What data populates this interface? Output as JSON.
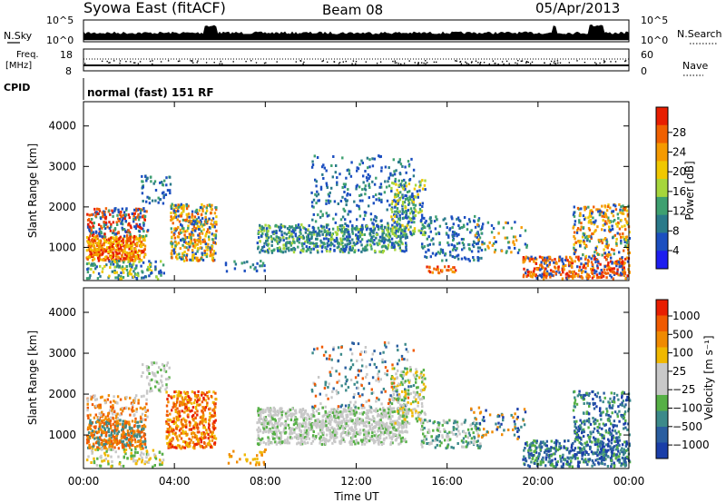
{
  "header": {
    "station": "Syowa East (fitACF)",
    "beam": "Beam 08",
    "date": "05/Apr/2013"
  },
  "chart_data": [
    {
      "type": "line",
      "panel": "noise",
      "left_label": "N.Sky",
      "right_label": "N.Search",
      "left_ticks": [
        "10^5",
        "10^0"
      ],
      "right_ticks": [
        "10^5",
        "10^0"
      ],
      "x_range_hours": [
        0,
        24
      ]
    },
    {
      "type": "scatter",
      "panel": "frequency",
      "left_label_lines": [
        "Freq.",
        "[MHz]"
      ],
      "left_ticks": [
        "18",
        "8"
      ],
      "right_label": "Nave",
      "right_ticks": [
        "60",
        "0"
      ]
    },
    {
      "type": "table",
      "panel": "cpid",
      "label": "CPID",
      "value": "normal (fast) 151 RF"
    },
    {
      "type": "heatmap",
      "panel": "power",
      "ylabel": "Slant Range [km]",
      "y_ticks": [
        "1000",
        "2000",
        "3000",
        "4000"
      ],
      "ylim": [
        180,
        4600
      ],
      "x_ticks": [
        "00:00",
        "04:00",
        "08:00",
        "12:00",
        "16:00",
        "20:00",
        "00:00"
      ],
      "colorbar": {
        "label": "Power [dB]",
        "ticks": [
          "4",
          "8",
          "12",
          "16",
          "20",
          "24",
          "28"
        ],
        "colors": [
          "#1e1ef0",
          "#1c4fc0",
          "#2a7a8a",
          "#3ea070",
          "#a6d63c",
          "#f0c800",
          "#f59a00",
          "#f06000",
          "#e81e00"
        ]
      }
    },
    {
      "type": "heatmap",
      "panel": "velocity",
      "ylabel": "Slant Range [km]",
      "y_ticks": [
        "1000",
        "2000",
        "3000",
        "4000"
      ],
      "ylim": [
        180,
        4600
      ],
      "x_ticks": [
        "00:00",
        "04:00",
        "08:00",
        "12:00",
        "16:00",
        "20:00",
        "00:00"
      ],
      "xlabel": "Time UT",
      "colorbar": {
        "label": "Velocity [m s⁻¹]",
        "ticks": [
          "1000",
          "500",
          "100",
          "25",
          "−25",
          "−100",
          "−500",
          "−1000"
        ],
        "colors": [
          "#1a3ea8",
          "#2a5ea0",
          "#3c8a8a",
          "#56b046",
          "#c8c8c8",
          "#c8c8c8",
          "#f0b800",
          "#f08a00",
          "#f05a00",
          "#e81e00"
        ]
      }
    }
  ]
}
